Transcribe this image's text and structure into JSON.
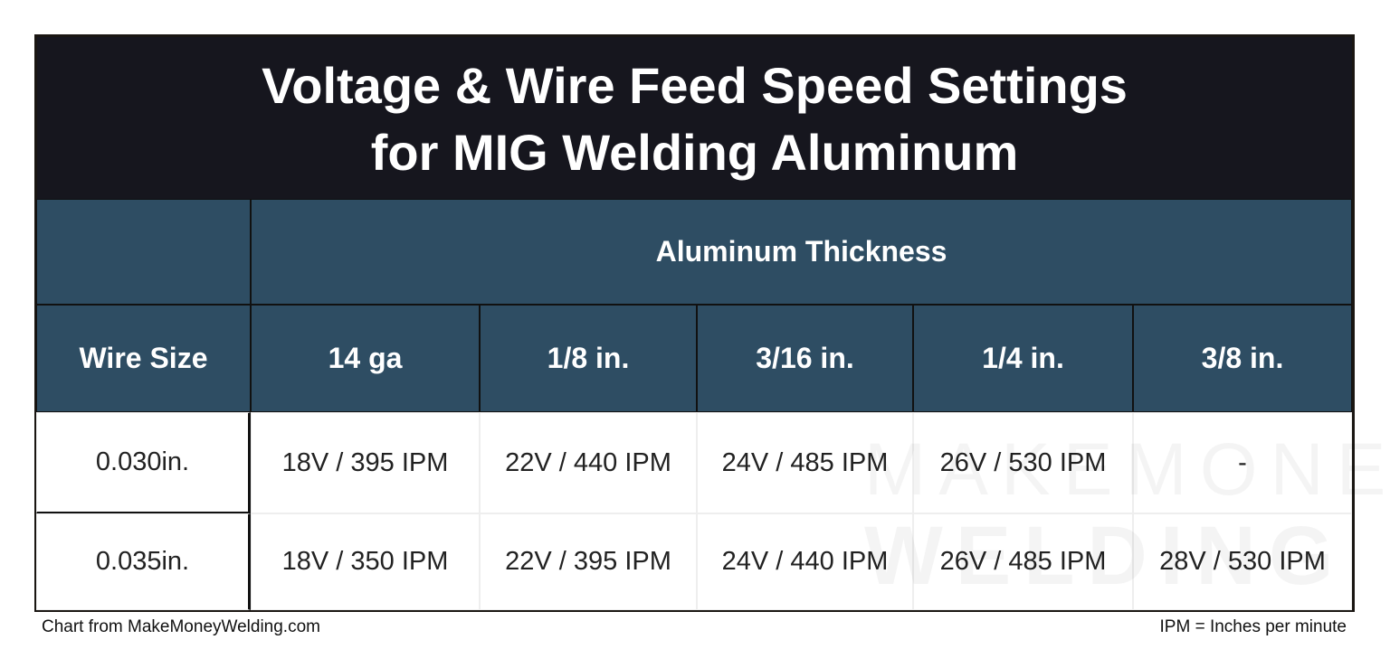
{
  "title": [
    "Voltage & Wire Feed Speed Settings",
    "for MIG Welding Aluminum"
  ],
  "table": {
    "group_header": "Aluminum Thickness",
    "header": [
      "Wire Size",
      "14 ga",
      "1/8 in.",
      "3/16 in.",
      "1/4 in.",
      "3/8 in."
    ],
    "rows": [
      [
        "0.030in.",
        "18V / 395 IPM",
        "22V / 440 IPM",
        "24V / 485 IPM",
        "26V / 530 IPM",
        "-"
      ],
      [
        "0.035in.",
        "18V / 350 IPM",
        "22V / 395 IPM",
        "24V / 440 IPM",
        "26V / 485 IPM",
        "28V / 530 IPM"
      ]
    ]
  },
  "watermark": [
    "MAKEMONEY",
    "WELDING"
  ],
  "footer": {
    "source": "Chart from MakeMoneyWelding.com",
    "note": "IPM = Inches per minute"
  }
}
